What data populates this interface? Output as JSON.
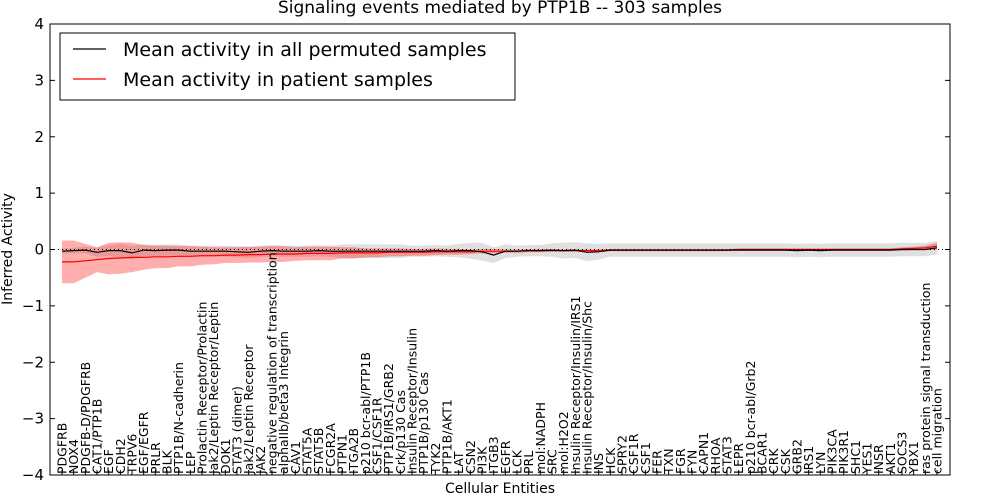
{
  "chart_data": {
    "type": "line",
    "title": "Signaling events mediated by PTP1B -- 303 samples",
    "xlabel": "Cellular Entities",
    "ylabel": "Inferred Activity",
    "ylim": [
      -4,
      4
    ],
    "yticks": [
      "4",
      "3",
      "2",
      "1",
      "0",
      "−1",
      "−2",
      "−3",
      "−4"
    ],
    "ytick_values": [
      4,
      3,
      2,
      1,
      0,
      -1,
      -2,
      -3,
      -4
    ],
    "legend": {
      "placement": "top-left",
      "entries": [
        {
          "label": "Mean activity in all permuted samples",
          "color": "#000000"
        },
        {
          "label": "Mean activity in patient samples",
          "color": "#ff0000"
        }
      ]
    },
    "categories": [
      "PDGFRB",
      "NOX4",
      "PDGFB-D/PDGFRB",
      "CAT1/PTP1B",
      "EGF",
      "CDH2",
      "TRPV6",
      "EGF/EGFR",
      "PRLR",
      "BLK",
      "PTP1B/N-cadherin",
      "LEP",
      "Prolactin Receptor/Prolactin",
      "Jak2/Leptin Receptor/Leptin",
      "DOK1",
      "STAT3 (dimer)",
      "Jak2/Leptin Receptor",
      "JAK2",
      "negative regulation of transcription",
      "alphaIIb/beta3 Integrin",
      "CAV1",
      "STAT5A",
      "STAT5B",
      "FCGR2A",
      "PTPN1",
      "ITGA2B",
      "p210 bcr-abl/PTP1B",
      "CSF1/CSF1R",
      "PTP1B/IRS1/GRB2",
      "Crk/p130 Cas",
      "Insulin Receptor/Insulin",
      "PTP1B/p130 Cas",
      "TYK2",
      "PTP1B/AKT1",
      "LAT",
      "CSN2",
      "PI3K",
      "ITGB3",
      "EGFR",
      "LCK",
      "PRL",
      "mol:NADPH",
      "SRC",
      "mol:H2O2",
      "Insulin Receptor/Insulin/IRS1",
      "Insulin Receptor/Insulin/Shc",
      "INS",
      "HCK",
      "SPRY2",
      "CSF1R",
      "CSF1",
      "FER",
      "TXN",
      "FGR",
      "FYN",
      "CAPN1",
      "RHOA",
      "STAT3",
      "LEPR",
      "p210 bcr-abl/Grb2",
      "BCAR1",
      "CRK",
      "CSK",
      "GRB2",
      "IRS1",
      "LYN",
      "PIK3CA",
      "PIK3R1",
      "SHC1",
      "YES1",
      "INSR",
      "AKT1",
      "SOCS3",
      "YBX1",
      "ras protein signal transduction",
      "cell migration"
    ],
    "series": [
      {
        "name": "Mean activity in all permuted samples",
        "color": "#000000",
        "values": [
          -0.03,
          -0.02,
          -0.01,
          -0.05,
          -0.02,
          -0.02,
          -0.06,
          -0.01,
          -0.02,
          -0.01,
          -0.01,
          -0.03,
          -0.03,
          -0.03,
          -0.03,
          -0.04,
          -0.05,
          -0.03,
          -0.02,
          -0.03,
          -0.03,
          -0.03,
          -0.02,
          -0.03,
          -0.03,
          -0.03,
          -0.03,
          -0.03,
          -0.03,
          -0.03,
          -0.03,
          -0.03,
          -0.02,
          -0.03,
          -0.02,
          -0.02,
          -0.04,
          -0.1,
          -0.03,
          -0.03,
          -0.02,
          -0.02,
          -0.01,
          -0.02,
          -0.01,
          -0.05,
          -0.04,
          -0.01,
          -0.01,
          -0.01,
          -0.01,
          -0.01,
          -0.01,
          -0.01,
          -0.01,
          -0.01,
          -0.01,
          -0.01,
          -0.01,
          -0.01,
          -0.01,
          -0.01,
          -0.01,
          -0.02,
          -0.01,
          -0.02,
          -0.01,
          -0.01,
          -0.01,
          -0.01,
          -0.01,
          -0.01,
          0.0,
          0.0,
          0.0,
          0.03
        ],
        "band": [
          0.05,
          0.05,
          0.06,
          0.08,
          0.1,
          0.12,
          0.12,
          0.1,
          0.1,
          0.1,
          0.1,
          0.1,
          0.1,
          0.1,
          0.1,
          0.1,
          0.1,
          0.1,
          0.1,
          0.1,
          0.1,
          0.1,
          0.1,
          0.1,
          0.12,
          0.12,
          0.12,
          0.12,
          0.12,
          0.12,
          0.1,
          0.1,
          0.1,
          0.1,
          0.12,
          0.14,
          0.16,
          0.14,
          0.12,
          0.1,
          0.1,
          0.1,
          0.12,
          0.14,
          0.14,
          0.16,
          0.14,
          0.12,
          0.12,
          0.12,
          0.12,
          0.12,
          0.12,
          0.12,
          0.12,
          0.12,
          0.12,
          0.12,
          0.12,
          0.12,
          0.12,
          0.12,
          0.12,
          0.12,
          0.12,
          0.12,
          0.12,
          0.12,
          0.12,
          0.12,
          0.12,
          0.12,
          0.12,
          0.12,
          0.12,
          0.12
        ]
      },
      {
        "name": "Mean activity in patient samples",
        "color": "#ff0000",
        "values": [
          -0.22,
          -0.22,
          -0.2,
          -0.18,
          -0.16,
          -0.15,
          -0.14,
          -0.14,
          -0.13,
          -0.13,
          -0.12,
          -0.12,
          -0.11,
          -0.11,
          -0.1,
          -0.1,
          -0.09,
          -0.09,
          -0.08,
          -0.08,
          -0.08,
          -0.07,
          -0.07,
          -0.07,
          -0.06,
          -0.06,
          -0.06,
          -0.06,
          -0.05,
          -0.05,
          -0.05,
          -0.05,
          -0.04,
          -0.04,
          -0.04,
          -0.04,
          -0.03,
          -0.03,
          -0.03,
          -0.03,
          -0.02,
          -0.02,
          -0.02,
          -0.02,
          -0.02,
          -0.02,
          -0.02,
          -0.01,
          -0.01,
          -0.01,
          -0.01,
          -0.01,
          -0.01,
          -0.01,
          -0.01,
          -0.01,
          -0.01,
          -0.01,
          0.0,
          0.0,
          0.0,
          0.0,
          0.0,
          0.0,
          0.0,
          0.0,
          0.0,
          0.0,
          0.0,
          0.0,
          0.0,
          0.0,
          0.01,
          0.02,
          0.03,
          0.06
        ],
        "band": [
          0.38,
          0.38,
          0.3,
          0.22,
          0.28,
          0.28,
          0.26,
          0.22,
          0.2,
          0.2,
          0.18,
          0.18,
          0.16,
          0.15,
          0.14,
          0.14,
          0.14,
          0.14,
          0.14,
          0.14,
          0.12,
          0.12,
          0.12,
          0.12,
          0.1,
          0.1,
          0.08,
          0.08,
          0.07,
          0.07,
          0.06,
          0.06,
          0.06,
          0.05,
          0.05,
          0.04,
          0.04,
          0.04,
          0.03,
          0.03,
          0.03,
          0.03,
          0.02,
          0.02,
          0.02,
          0.02,
          0.02,
          0.02,
          0.02,
          0.02,
          0.02,
          0.02,
          0.02,
          0.02,
          0.02,
          0.02,
          0.02,
          0.02,
          0.02,
          0.02,
          0.02,
          0.02,
          0.02,
          0.02,
          0.02,
          0.02,
          0.02,
          0.02,
          0.02,
          0.02,
          0.02,
          0.02,
          0.03,
          0.03,
          0.04,
          0.06
        ]
      }
    ]
  }
}
